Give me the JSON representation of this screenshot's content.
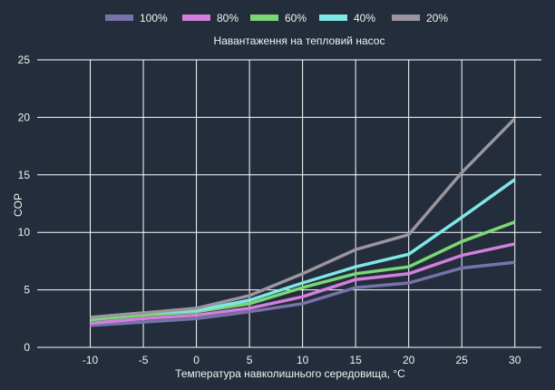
{
  "chart_data": {
    "type": "line",
    "x": [
      -10,
      -5,
      0,
      5,
      10,
      15,
      20,
      25,
      30
    ],
    "series": [
      {
        "name": "100%",
        "color": "#7872ab",
        "values": [
          1.9,
          2.2,
          2.5,
          3.1,
          3.8,
          5.2,
          5.6,
          6.9,
          7.4
        ]
      },
      {
        "name": "80%",
        "color": "#d37fdc",
        "values": [
          2.1,
          2.5,
          2.8,
          3.4,
          4.4,
          5.9,
          6.4,
          8.0,
          9.0
        ]
      },
      {
        "name": "60%",
        "color": "#7ad874",
        "values": [
          2.4,
          2.8,
          3.1,
          3.8,
          5.2,
          6.4,
          7.0,
          9.2,
          10.9
        ]
      },
      {
        "name": "40%",
        "color": "#7fe7e6",
        "values": [
          2.6,
          3.0,
          3.2,
          4.1,
          5.6,
          7.0,
          8.1,
          11.3,
          14.6
        ]
      },
      {
        "name": "20%",
        "color": "#9a959e",
        "values": [
          2.6,
          3.0,
          3.4,
          4.5,
          6.4,
          8.5,
          9.8,
          15.2,
          19.9
        ]
      }
    ],
    "legend_title": "Навантаження на тепловий насос",
    "xlabel": "Температура навколишнього середовища, °C",
    "ylabel": "COP",
    "xticks": [
      -10,
      -5,
      0,
      5,
      10,
      15,
      20,
      25,
      30
    ],
    "yticks": [
      0,
      5,
      10,
      15,
      20,
      25
    ],
    "xlim": [
      -15,
      32.5
    ],
    "ylim": [
      0,
      25
    ],
    "grid": true,
    "legend_position": "top"
  }
}
